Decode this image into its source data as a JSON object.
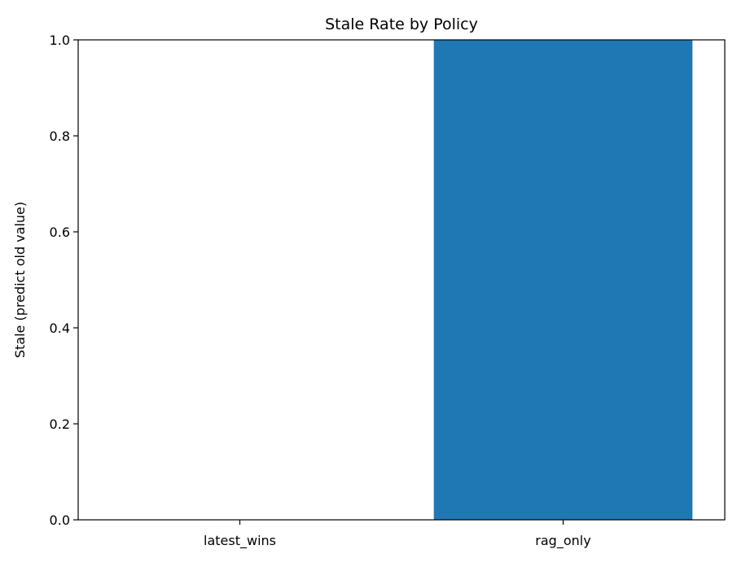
{
  "chart_data": {
    "type": "bar",
    "title": "Stale Rate by Policy",
    "xlabel": "",
    "ylabel": "Stale (predict old value)",
    "categories": [
      "latest_wins",
      "rag_only"
    ],
    "values": [
      0.0,
      1.0
    ],
    "ylim": [
      0,
      1
    ],
    "yticks": [
      "0.0",
      "0.2",
      "0.4",
      "0.6",
      "0.8",
      "1.0"
    ],
    "grid": false,
    "legend": "none",
    "bar_color": "#1f77b4"
  }
}
